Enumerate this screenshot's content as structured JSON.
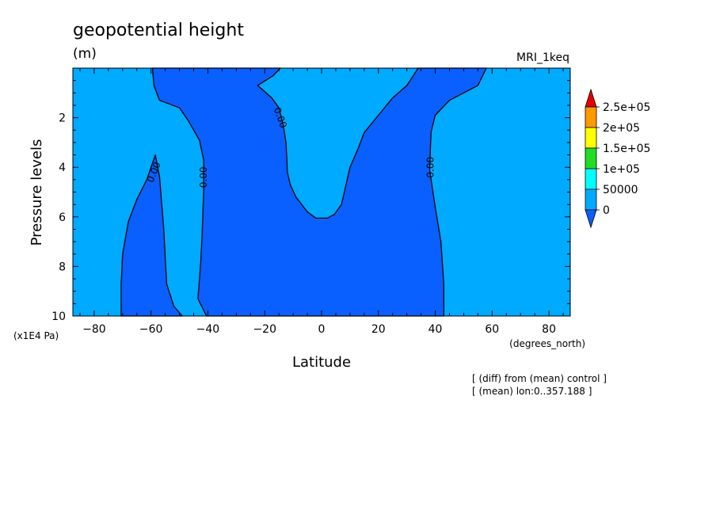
{
  "chart_data": {
    "type": "heatmap",
    "title": "geopotential height",
    "units": "(m)",
    "dataset": "MRI_1keq",
    "xlabel": "Latitude",
    "xunits": "(degrees_north)",
    "ylabel": "Pressure levels",
    "yunits": "(x1E4 Pa)",
    "xlim": [
      -87.5,
      87.5
    ],
    "ylim": [
      10,
      0
    ],
    "xticks": [
      -80,
      -60,
      -40,
      -20,
      0,
      20,
      40,
      60,
      80
    ],
    "yticks": [
      2,
      4,
      6,
      8,
      10
    ],
    "notes": [
      "[ (diff) from (mean) control ]",
      "[ (mean) lon:0..357.188 ]"
    ],
    "colorbar": {
      "labels": [
        "2.5e+05",
        "2e+05",
        "1.5e+05",
        "1e+05",
        "50000",
        "0"
      ],
      "colors": [
        "#e60000",
        "#ff9900",
        "#ffff00",
        "#22dd22",
        "#00ffff",
        "#00aaff",
        "#0a5fff"
      ]
    },
    "contour_level": "0.00",
    "background_color": "#00aaff",
    "negative_color": "#0a5fff",
    "negative_regions": [
      {
        "name": "southern-tongue",
        "points": [
          [
            -70.5,
            10
          ],
          [
            -70.5,
            8.7
          ],
          [
            -70,
            7.5
          ],
          [
            -68,
            6.2
          ],
          [
            -65,
            5.3
          ],
          [
            -61.5,
            4.5
          ],
          [
            -58.5,
            3.5
          ],
          [
            -57,
            4.4
          ],
          [
            -55.5,
            6.5
          ],
          [
            -54.5,
            8.7
          ],
          [
            -52,
            9.6
          ],
          [
            -49,
            10
          ]
        ]
      },
      {
        "name": "main-negative",
        "points": [
          [
            -59.5,
            0
          ],
          [
            -59,
            0.7
          ],
          [
            -57,
            1.3
          ],
          [
            -50,
            1.6
          ],
          [
            -47,
            2.1
          ],
          [
            -43,
            2.9
          ],
          [
            -41.5,
            3.7
          ],
          [
            -41.5,
            5
          ],
          [
            -42,
            6.6
          ],
          [
            -42.5,
            7.8
          ],
          [
            -43.5,
            9.3
          ],
          [
            -40.5,
            10
          ],
          [
            43,
            10
          ],
          [
            43,
            8.7
          ],
          [
            42,
            7
          ],
          [
            40,
            5.6
          ],
          [
            38,
            4.1
          ],
          [
            38.5,
            2.6
          ],
          [
            40,
            1.9
          ],
          [
            45,
            1.3
          ],
          [
            50,
            1
          ],
          [
            55,
            0.7
          ],
          [
            58,
            0
          ],
          [
            34,
            0
          ],
          [
            30,
            0.7
          ],
          [
            25,
            1.2
          ],
          [
            20,
            1.9
          ],
          [
            15,
            2.6
          ],
          [
            13,
            3.2
          ],
          [
            10,
            4
          ],
          [
            8,
            5
          ],
          [
            7,
            5.5
          ],
          [
            4.5,
            5.9
          ],
          [
            2,
            6.05
          ],
          [
            -2,
            6.05
          ],
          [
            -5,
            5.8
          ],
          [
            -9,
            5.2
          ],
          [
            -11,
            4.7
          ],
          [
            -12,
            4.2
          ],
          [
            -12.5,
            3
          ],
          [
            -13.5,
            2.3
          ],
          [
            -15,
            1.6
          ],
          [
            -17.5,
            1.2
          ],
          [
            -22.5,
            0.7
          ],
          [
            -17,
            0.3
          ],
          [
            -14.5,
            0
          ]
        ]
      }
    ],
    "contour_labels": [
      {
        "text": "0.00",
        "x": -59,
        "y": 4.2,
        "angle": -68
      },
      {
        "text": "0.00",
        "x": -41.5,
        "y": 4.4,
        "angle": -90
      },
      {
        "text": "0.00",
        "x": -14.5,
        "y": 2.0,
        "angle": 70
      },
      {
        "text": "0.00",
        "x": 38.3,
        "y": 4.0,
        "angle": -90
      }
    ]
  }
}
